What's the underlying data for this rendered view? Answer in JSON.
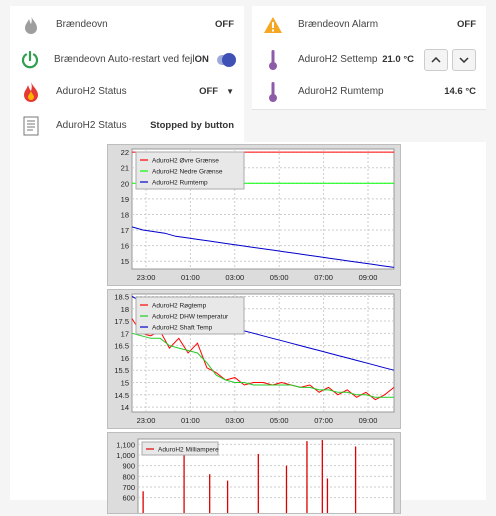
{
  "tiles": [
    {
      "id": "braendeovn",
      "label": "Brændeovn",
      "value": "OFF",
      "icon": "flame-gray-icon"
    },
    {
      "id": "alarm",
      "label": "Brændeovn Alarm",
      "value": "OFF",
      "icon": "warning-icon"
    },
    {
      "id": "autorestart",
      "label": "Brændeovn Auto-restart ved fejl",
      "value": "ON",
      "icon": "power-icon"
    },
    {
      "id": "settemp",
      "label": "AduroH2 Settemp",
      "value": "21.0 °C",
      "icon": "thermometer-icon"
    },
    {
      "id": "status_sel",
      "label": "AduroH2 Status",
      "value": "OFF",
      "icon": "flame-red-icon"
    },
    {
      "id": "rumtemp",
      "label": "AduroH2 Rumtemp",
      "value": "14.6 °C",
      "icon": "thermometer-icon"
    },
    {
      "id": "status_txt",
      "label": "AduroH2 Status",
      "value": "Stopped by button",
      "icon": "document-icon"
    }
  ],
  "colors": {
    "accent": "#3f51b5",
    "power": "#2e9e4f",
    "warning": "#f5a623",
    "flame": "#e53935"
  },
  "chart_data": [
    {
      "type": "line",
      "x_ticks": [
        "23:00",
        "01:00",
        "03:00",
        "05:00",
        "07:00",
        "09:00"
      ],
      "ylim": [
        14.5,
        22.2
      ],
      "y_ticks": [
        15,
        16,
        17,
        18,
        19,
        20,
        21,
        22
      ],
      "grid": true,
      "legend": "top-left",
      "series": [
        {
          "name": "AduroH2 Øvre Grænse",
          "color": "#ff0000",
          "y": [
            22,
            22
          ]
        },
        {
          "name": "AduroH2 Nedre Grænse",
          "color": "#00ff00",
          "y": [
            20,
            20
          ]
        },
        {
          "name": "AduroH2 Rumtemp",
          "color": "#0000cc",
          "y": [
            17.2,
            17.0,
            16.9,
            16.8,
            16.6,
            16.5,
            16.4,
            16.3,
            16.2,
            16.1,
            16.0,
            15.9,
            15.8,
            15.7,
            15.6,
            15.5,
            15.4,
            15.3,
            15.2,
            15.1,
            15.0,
            14.9,
            14.8,
            14.7,
            14.6
          ]
        }
      ]
    },
    {
      "type": "line",
      "x_ticks": [
        "23:00",
        "01:00",
        "03:00",
        "05:00",
        "07:00",
        "09:00"
      ],
      "ylim": [
        13.8,
        18.6
      ],
      "y_ticks": [
        14,
        14.5,
        15,
        15.5,
        16,
        16.5,
        17,
        17.5,
        18,
        18.5
      ],
      "grid": true,
      "legend": "top-left",
      "series": [
        {
          "name": "AduroH2 Røgtemp",
          "color": "#ff0000",
          "y": [
            17.6,
            17.0,
            16.9,
            17.1,
            16.4,
            16.8,
            16.2,
            16.6,
            15.6,
            15.4,
            15.1,
            15.2,
            14.9,
            15.0,
            15.0,
            14.9,
            15.0,
            14.9,
            14.8,
            14.9,
            14.6,
            14.8,
            14.5,
            14.7,
            14.4,
            14.6,
            14.3,
            14.5,
            14.8
          ]
        },
        {
          "name": "AduroH2 DHW temperatur",
          "color": "#22cc22",
          "y": [
            17.0,
            16.9,
            16.8,
            16.8,
            16.5,
            16.4,
            16.3,
            16.2,
            15.8,
            15.3,
            15.1,
            15.0,
            15.0,
            14.9,
            14.9,
            14.9,
            14.9,
            14.9,
            14.8,
            14.8,
            14.7,
            14.7,
            14.6,
            14.6,
            14.5,
            14.5,
            14.4,
            14.4,
            14.4
          ]
        },
        {
          "name": "AduroH2 Shaft Temp",
          "color": "#0000cc",
          "y": [
            18.5,
            18.3,
            18.2,
            18.0,
            17.9,
            17.8,
            17.7,
            17.6,
            17.5,
            17.4,
            17.3,
            17.2,
            17.1,
            17.0,
            16.9,
            16.8,
            16.7,
            16.6,
            16.5,
            16.4,
            16.3,
            16.2,
            16.1,
            16.0,
            15.9,
            15.8,
            15.7,
            15.6,
            15.5
          ]
        }
      ]
    },
    {
      "type": "bar",
      "ylim": [
        550,
        1150
      ],
      "y_ticks": [
        "600",
        "700",
        "800",
        "900",
        "1,000",
        "1,100"
      ],
      "grid": true,
      "legend": "top-left",
      "series": [
        {
          "name": "AduroH2 Milliampere",
          "color": "#dd0000"
        }
      ]
    }
  ]
}
